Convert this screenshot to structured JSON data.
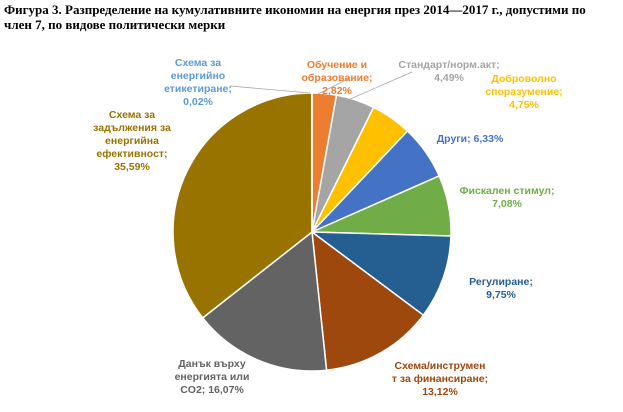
{
  "figure_title": "Фигура 3. Разпределение на кумулативните икономии на енергия през 2014—2017 г., допустими по член 7, по видове политически мерки",
  "chart_data": {
    "type": "pie",
    "title": "Фигура 3. Разпределение на кумулативните икономии на енергия през 2014—2017 г., допустими по член 7, по видове политически мерки",
    "slices": [
      {
        "label": [
          "Обучение и",
          "образование;",
          "2,82%"
        ],
        "value": 2.82,
        "color": "#ED7D31",
        "label_color": "#ED7D31"
      },
      {
        "label": [
          "Стандарт/норм.акт;",
          "4,49%"
        ],
        "value": 4.49,
        "color": "#A5A5A5",
        "label_color": "#A5A5A5"
      },
      {
        "label": [
          "Доброволно",
          "споразумение;",
          "4,75%"
        ],
        "value": 4.75,
        "color": "#FFC000",
        "label_color": "#FFC000"
      },
      {
        "label": [
          "Други; 6,33%"
        ],
        "value": 6.33,
        "color": "#4472C4",
        "label_color": "#4472C4"
      },
      {
        "label": [
          "Фискален  стимул;",
          "7,08%"
        ],
        "value": 7.08,
        "color": "#70AD47",
        "label_color": "#70AD47"
      },
      {
        "label": [
          "Регулиране;",
          "9,75%"
        ],
        "value": 9.75,
        "color": "#255E91",
        "label_color": "#255E91"
      },
      {
        "label": [
          "Схема/инструмен",
          "т за финансиране;",
          "13,12%"
        ],
        "value": 13.12,
        "color": "#9E480E",
        "label_color": "#9E480E"
      },
      {
        "label": [
          "Данък върху",
          "енергията или",
          "CO2; 16,07%"
        ],
        "value": 16.07,
        "color": "#636363",
        "label_color": "#636363"
      },
      {
        "label": [
          "Схема за",
          "задължения за",
          "енергийна",
          "ефективност;",
          "35,59%"
        ],
        "value": 35.59,
        "color": "#997300",
        "label_color": "#997300"
      },
      {
        "label": [
          "Схема за",
          "енергийно",
          "етикетиране;",
          "0,02%"
        ],
        "value": 0.02,
        "color": "#264478",
        "label_color": "#5B9BD5"
      }
    ]
  }
}
